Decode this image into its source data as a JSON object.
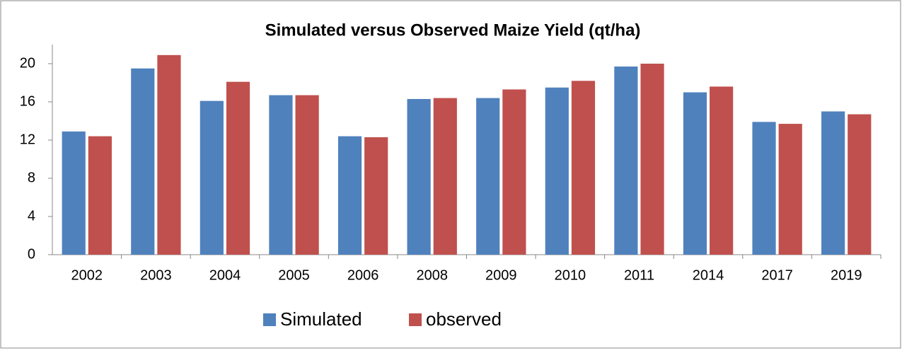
{
  "chart_data": {
    "type": "bar",
    "title": "Simulated versus Observed Maize Yield (qt/ha)",
    "categories": [
      "2002",
      "2003",
      "2004",
      "2005",
      "2006",
      "2008",
      "2009",
      "2010",
      "2011",
      "2014",
      "2017",
      "2019"
    ],
    "series": [
      {
        "name": "Simulated",
        "color": "#4f81bd",
        "values": [
          12.9,
          19.5,
          16.1,
          16.7,
          12.4,
          16.3,
          16.4,
          17.5,
          19.7,
          17.0,
          13.9,
          15.0
        ]
      },
      {
        "name": "observed",
        "color": "#c0504d",
        "values": [
          12.4,
          20.9,
          18.1,
          16.7,
          12.3,
          16.4,
          17.3,
          18.2,
          20.0,
          17.6,
          13.7,
          14.7
        ]
      }
    ],
    "ylim": [
      0,
      22
    ],
    "yticks": [
      0,
      4,
      8,
      12,
      16,
      20
    ],
    "grid": false,
    "legend": "bottom"
  }
}
